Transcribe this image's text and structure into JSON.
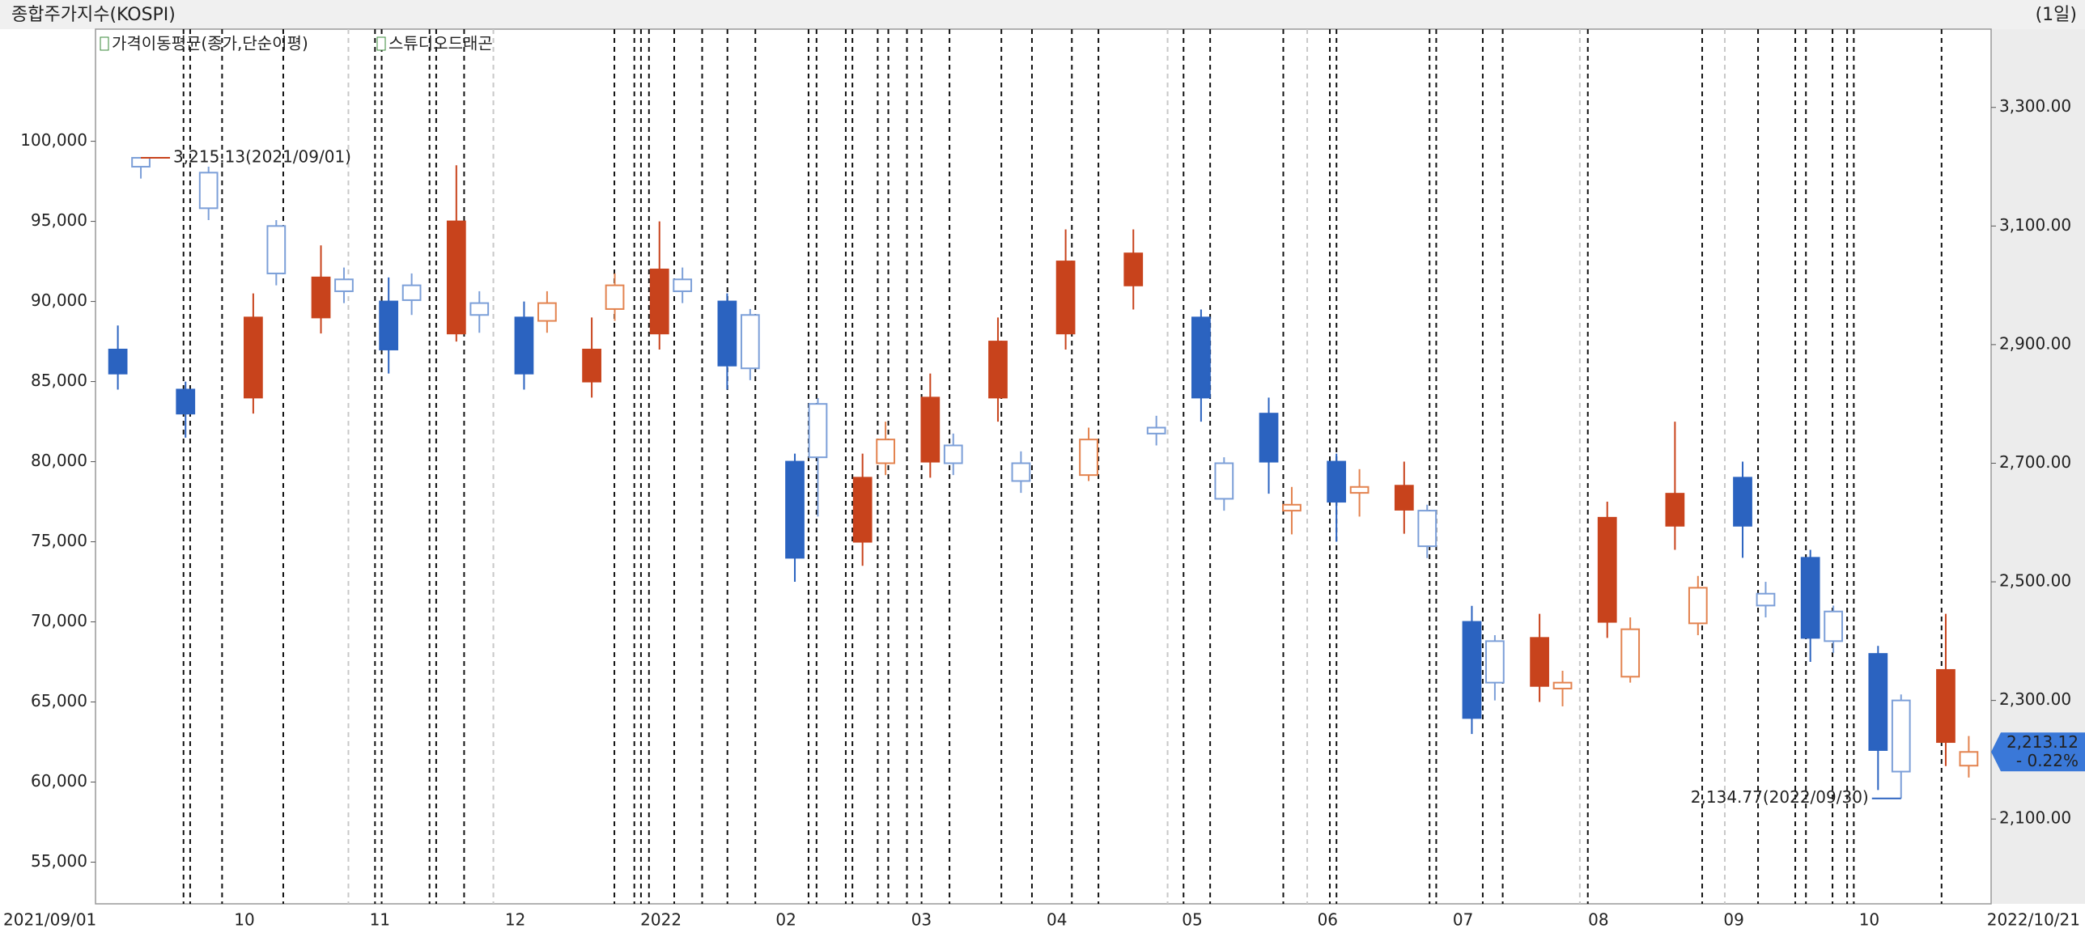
{
  "chart_data": {
    "type": "candlestick",
    "title": "종합주가지수(KOSPI)",
    "period_label": "(1일)",
    "indicator_label": "가격이동평균(종가,단순이평)",
    "categories": [
      "2021/09/01",
      null,
      "10",
      null,
      "11",
      null,
      "12",
      null,
      "2022",
      null,
      "02",
      null,
      "03",
      null,
      "04",
      null,
      "05",
      null,
      "06",
      null,
      "07",
      null,
      "08",
      null,
      "09",
      null,
      "10",
      "2022/10/21"
    ],
    "series": [
      {
        "name": "스튜디오드래곤",
        "up_color": "#c8431c",
        "down_color": "#2b63c0",
        "open": [
          87000,
          84500,
          84000,
          89000,
          90000,
          88000,
          89000,
          85000,
          88000,
          90000,
          80000,
          75000,
          80000,
          84000,
          88000,
          91000,
          89000,
          83000,
          80000,
          77000,
          70000,
          66000,
          70000,
          76000,
          79000,
          74000,
          68000,
          62500
        ],
        "high": [
          88500,
          85000,
          90500,
          93500,
          91500,
          98500,
          90000,
          89000,
          95000,
          90500,
          80500,
          80500,
          85500,
          89000,
          94500,
          94500,
          89500,
          84000,
          80500,
          80000,
          71000,
          70500,
          77500,
          82500,
          80000,
          74500,
          68500,
          70500
        ],
        "low": [
          84500,
          81500,
          83000,
          88000,
          85500,
          87500,
          84500,
          84000,
          87000,
          84500,
          72500,
          73500,
          79000,
          82500,
          87000,
          89500,
          82500,
          78000,
          75000,
          75500,
          63000,
          65000,
          69000,
          74500,
          74000,
          67500,
          59500,
          61000
        ],
        "close": [
          85500,
          83000,
          89000,
          91500,
          87000,
          95000,
          85500,
          87000,
          92000,
          86000,
          74000,
          79000,
          84000,
          87500,
          92500,
          93000,
          84000,
          80000,
          77500,
          78500,
          64000,
          69000,
          76500,
          78000,
          76000,
          69000,
          62000,
          67000
        ]
      },
      {
        "axis": "y2",
        "up_color": "#e3834f",
        "down_color": "#7c9fd8",
        "open": [
          3215,
          3190,
          3100,
          3010,
          3000,
          2970,
          2940,
          2960,
          3010,
          2950,
          2800,
          2700,
          2730,
          2700,
          2680,
          2760,
          2700,
          2620,
          2650,
          2620,
          2400,
          2320,
          2340,
          2430,
          2480,
          2450,
          2300,
          2190
        ],
        "high": [
          3215.13,
          3200,
          3110,
          3030,
          3020,
          2990,
          2990,
          3020,
          3030,
          2960,
          2810,
          2770,
          2750,
          2720,
          2760,
          2780,
          2710,
          2660,
          2690,
          2630,
          2410,
          2350,
          2440,
          2510,
          2500,
          2460,
          2310,
          2240
        ],
        "low": [
          3180,
          3110,
          3000,
          2970,
          2950,
          2920,
          2920,
          2940,
          2970,
          2840,
          2610,
          2680,
          2680,
          2650,
          2670,
          2730,
          2620,
          2580,
          2610,
          2540,
          2300,
          2290,
          2330,
          2410,
          2440,
          2380,
          2134.77,
          2170
        ],
        "close": [
          3200,
          3130,
          3020,
          2990,
          2975,
          2950,
          2970,
          3000,
          2990,
          2860,
          2710,
          2740,
          2700,
          2670,
          2740,
          2750,
          2640,
          2630,
          2660,
          2560,
          2330,
          2330,
          2420,
          2490,
          2460,
          2400,
          2180,
          2213.12
        ]
      }
    ],
    "max_label": "3,215.13(2021/09/01)",
    "min_label": "2,134.77(2022/09/30)",
    "last_label": "2,213.12",
    "last_change": "- 0.22%",
    "ylim": [
      52400,
      107000
    ],
    "yticks": [
      {
        "value": 55000,
        "label": "55,000"
      },
      {
        "value": 60000,
        "label": "60,000"
      },
      {
        "value": 65000,
        "label": "65,000"
      },
      {
        "value": 70000,
        "label": "70,000"
      },
      {
        "value": 75000,
        "label": "75,000"
      },
      {
        "value": 80000,
        "label": "80,000"
      },
      {
        "value": 85000,
        "label": "85,000"
      },
      {
        "value": 90000,
        "label": "90,000"
      },
      {
        "value": 95000,
        "label": "95,000"
      },
      {
        "value": 100000,
        "label": "100,000"
      }
    ],
    "y2lim": [
      1957,
      3432
    ],
    "y2ticks": [
      {
        "value": 2100,
        "label": "2,100.00"
      },
      {
        "value": 2300,
        "label": "2,300.00"
      },
      {
        "value": 2500,
        "label": "2,500.00"
      },
      {
        "value": 2700,
        "label": "2,700.00"
      },
      {
        "value": 2900,
        "label": "2,900.00"
      },
      {
        "value": 3100,
        "label": "3,100.00"
      },
      {
        "value": 3300,
        "label": "3,300.00"
      }
    ]
  }
}
